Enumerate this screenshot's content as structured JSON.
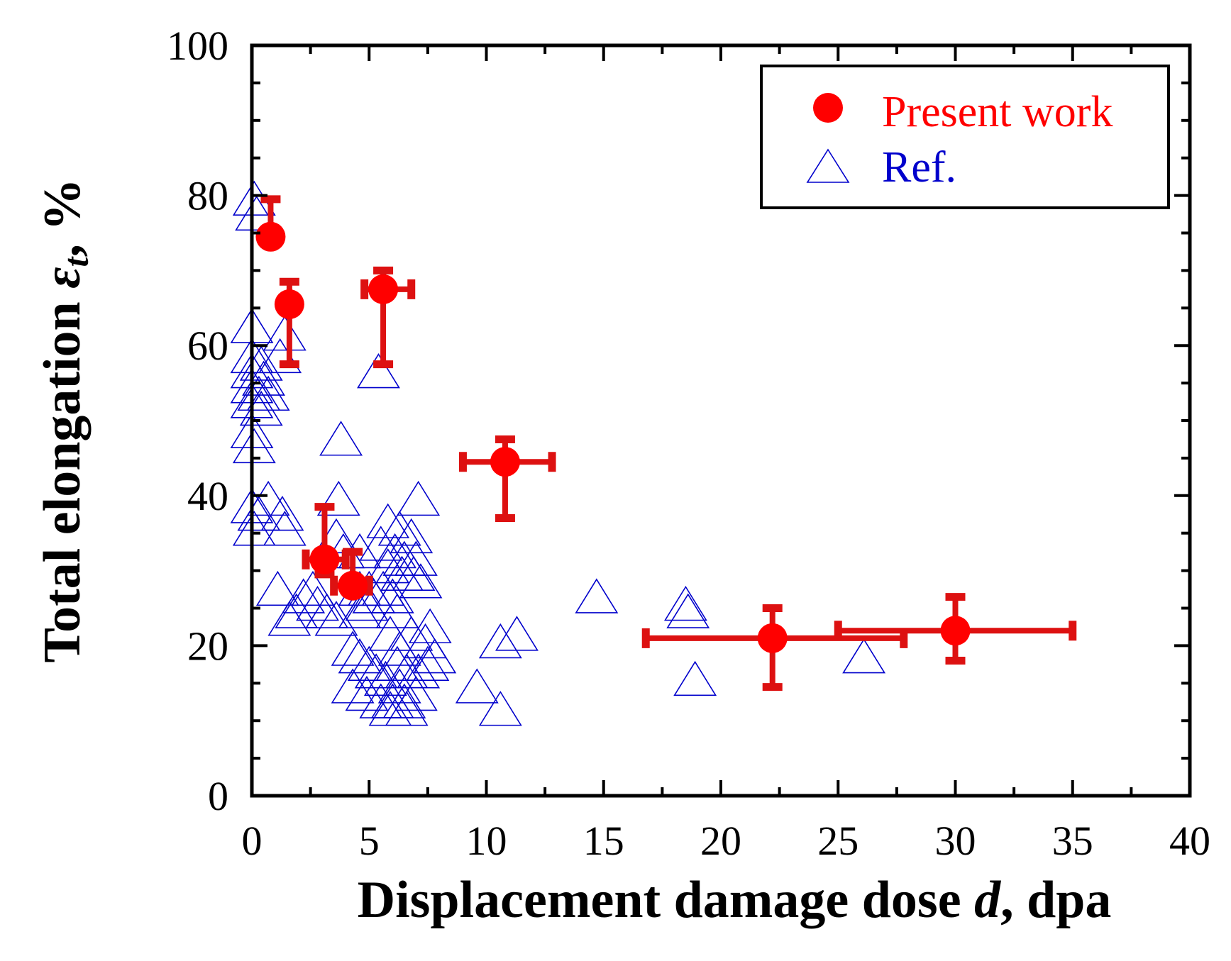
{
  "chart_data": {
    "type": "scatter",
    "xlabel": {
      "prefix": "Displacement damage dose ",
      "var": "d",
      "suffix": ", dpa"
    },
    "ylabel": {
      "prefix": "Total elongation ",
      "var": "ε",
      "sub": "t",
      "suffix": ", %"
    },
    "xlim": [
      0,
      40
    ],
    "ylim": [
      0,
      100
    ],
    "x_ticks": [
      0,
      5,
      10,
      15,
      20,
      25,
      30,
      35,
      40
    ],
    "y_ticks": [
      0,
      20,
      40,
      60,
      80,
      100
    ],
    "x_tick_labels": [
      "0",
      "5",
      "10",
      "15",
      "20",
      "25",
      "30",
      "35",
      "40"
    ],
    "y_tick_labels": [
      "0",
      "20",
      "40",
      "60",
      "80",
      "100"
    ],
    "legend_position": "top-right",
    "colors": {
      "present": "#ff0000",
      "present_err": "#dd1111",
      "ref": "#0000cc"
    },
    "series": [
      {
        "name": "Present work",
        "marker": "filled-circle",
        "points": [
          {
            "x": 0.8,
            "y": 74.5,
            "yerr": [
              74.5,
              79.5
            ]
          },
          {
            "x": 1.6,
            "y": 65.5,
            "yerr": [
              57.5,
              68.5
            ]
          },
          {
            "x": 5.6,
            "y": 67.5,
            "xerr": [
              4.8,
              6.8
            ],
            "yerr": [
              57.5,
              70
            ]
          },
          {
            "x": 10.8,
            "y": 44.5,
            "xerr": [
              9.0,
              12.8
            ],
            "yerr": [
              37,
              47.5
            ]
          },
          {
            "x": 3.1,
            "y": 31.5,
            "xerr": [
              2.3,
              4.0
            ],
            "yerr": [
              29.5,
              38.5
            ]
          },
          {
            "x": 4.3,
            "y": 28,
            "xerr": [
              3.5,
              5.0
            ],
            "yerr": [
              27,
              32.5
            ]
          },
          {
            "x": 22.2,
            "y": 21,
            "xerr": [
              16.8,
              27.8
            ],
            "yerr": [
              14.5,
              25
            ]
          },
          {
            "x": 30,
            "y": 22,
            "xerr": [
              25,
              35
            ],
            "yerr": [
              18,
              26.5
            ]
          }
        ]
      },
      {
        "name": "Ref.",
        "marker": "open-triangle",
        "points": [
          [
            0.1,
            79
          ],
          [
            0.2,
            77
          ],
          [
            0.0,
            62
          ],
          [
            1.4,
            61
          ],
          [
            0.0,
            58
          ],
          [
            0.4,
            57
          ],
          [
            1.2,
            58
          ],
          [
            0.0,
            56
          ],
          [
            0.5,
            55
          ],
          [
            0.0,
            54
          ],
          [
            0.3,
            53
          ],
          [
            0.7,
            53
          ],
          [
            0.0,
            52
          ],
          [
            0.4,
            51
          ],
          [
            0.0,
            48
          ],
          [
            0.1,
            46
          ],
          [
            5.4,
            56
          ],
          [
            3.8,
            47
          ],
          [
            0.0,
            38
          ],
          [
            0.7,
            39
          ],
          [
            3.7,
            39
          ],
          [
            0.3,
            37
          ],
          [
            1.3,
            37
          ],
          [
            0.1,
            35
          ],
          [
            1.4,
            35
          ],
          [
            3.6,
            34
          ],
          [
            3.9,
            32
          ],
          [
            4.6,
            32
          ],
          [
            5.8,
            36
          ],
          [
            6.3,
            35
          ],
          [
            6.8,
            34
          ],
          [
            7.1,
            39
          ],
          [
            5.5,
            33
          ],
          [
            6.1,
            32
          ],
          [
            6.5,
            31
          ],
          [
            7.0,
            31
          ],
          [
            5.8,
            30
          ],
          [
            6.4,
            29
          ],
          [
            6.9,
            29
          ],
          [
            7.2,
            28
          ],
          [
            5.6,
            27
          ],
          [
            6.0,
            26
          ],
          [
            5.2,
            26
          ],
          [
            4.9,
            25
          ],
          [
            4.6,
            24
          ],
          [
            1.1,
            27
          ],
          [
            2.6,
            27
          ],
          [
            2.2,
            26
          ],
          [
            2.8,
            25
          ],
          [
            3.2,
            24
          ],
          [
            3.6,
            23
          ],
          [
            1.9,
            24
          ],
          [
            1.6,
            23
          ],
          [
            4.6,
            27
          ],
          [
            5.0,
            27
          ],
          [
            6.2,
            24
          ],
          [
            7.6,
            22
          ],
          [
            6.8,
            21
          ],
          [
            7.4,
            20
          ],
          [
            5.9,
            21
          ],
          [
            6.3,
            19
          ],
          [
            4.3,
            19
          ],
          [
            4.6,
            18
          ],
          [
            5.0,
            17
          ],
          [
            5.3,
            16
          ],
          [
            5.7,
            15
          ],
          [
            6.2,
            17
          ],
          [
            6.6,
            16
          ],
          [
            7.1,
            16
          ],
          [
            7.5,
            17
          ],
          [
            7.8,
            18
          ],
          [
            4.3,
            14
          ],
          [
            4.9,
            13
          ],
          [
            5.5,
            12
          ],
          [
            6.0,
            12
          ],
          [
            6.5,
            12
          ],
          [
            7.0,
            13
          ],
          [
            6.3,
            14
          ],
          [
            6.6,
            11
          ],
          [
            5.9,
            11
          ],
          [
            9.6,
            14
          ],
          [
            10.6,
            11
          ],
          [
            10.6,
            20
          ],
          [
            11.3,
            21
          ],
          [
            14.7,
            26
          ],
          [
            18.5,
            25
          ],
          [
            18.6,
            24
          ],
          [
            18.9,
            15
          ],
          [
            26.1,
            18
          ]
        ]
      }
    ]
  }
}
